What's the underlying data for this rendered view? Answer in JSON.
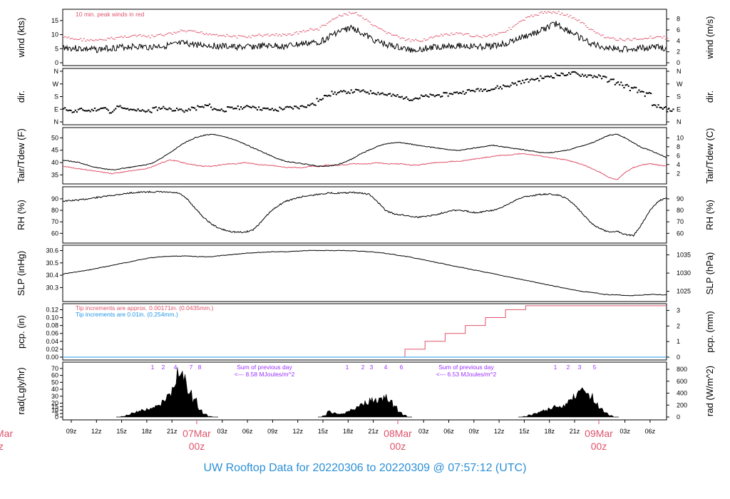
{
  "footer": {
    "title": "UW Rooftop Data for 20220306  to  20220309 @ 07:57:12  (UTC)"
  },
  "colors": {
    "red": "#df536b",
    "blue": "#2297e6",
    "purple": "#9b30ff",
    "black": "#000000",
    "footer": "#2b8fd6"
  },
  "chart_data": [
    {
      "type": "line",
      "id": "wind",
      "ylabel": "wind (kts)",
      "ylabel_right": "wind (m/s)",
      "ylim": [
        0,
        18
      ],
      "ylim_right": [
        0,
        9.26
      ],
      "yticks": [
        "0",
        "5",
        "10",
        "15"
      ],
      "yticks_right": [
        "0",
        "2",
        "4",
        "6",
        "8"
      ],
      "annotation": "10 min. peak winds in red",
      "series": [
        {
          "values": [
            5.5,
            5.2,
            5,
            4.8,
            4.6,
            5,
            5.3,
            5.5,
            5.8,
            5.7,
            5.5,
            5.8,
            6,
            6.3,
            6.8,
            6.6,
            6.4,
            6.2,
            6,
            5.8,
            5.6,
            5.5,
            5.6,
            5.8,
            5.9,
            6,
            5.8,
            6.2,
            6.6,
            7,
            7.2,
            8.5,
            10.5,
            11.5,
            12.5,
            11,
            9,
            7.5,
            6.5,
            5.8,
            5,
            4.6,
            4.8,
            5.2,
            5.6,
            6,
            6.2,
            6,
            5.8,
            5.6,
            5.8,
            6.2,
            6.8,
            7.8,
            9,
            10,
            11,
            12.5,
            14,
            12,
            10.5,
            8.5,
            7,
            6,
            5.4,
            5,
            4.8,
            5,
            5.2,
            5.4,
            5.6,
            5.2
          ]
        },
        {
          "values": [
            9,
            8.5,
            8.3,
            8,
            7.8,
            8.3,
            8.8,
            9.2,
            9.6,
            9.5,
            9.2,
            9.6,
            10,
            10.5,
            11.3,
            11,
            10.7,
            10.3,
            10,
            9.7,
            9.3,
            9.2,
            9.3,
            9.7,
            9.8,
            10,
            9.7,
            10.3,
            11,
            11.7,
            12,
            14,
            16,
            17,
            18,
            16.5,
            14,
            12,
            10.8,
            9.7,
            8.3,
            7.7,
            8,
            8.7,
            9.3,
            10,
            10.3,
            10,
            9.7,
            9.3,
            9.7,
            10.3,
            11.3,
            13,
            15,
            16.5,
            17.5,
            18,
            18,
            17,
            16,
            14,
            11.7,
            10,
            9,
            8.3,
            8,
            8.3,
            8.7,
            9,
            9.3,
            8.7
          ]
        }
      ]
    },
    {
      "type": "scatter",
      "id": "direction",
      "ylabel": "dir.",
      "ylabel_right": "dir.",
      "ylim": [
        0,
        360
      ],
      "yticks": [
        "N",
        "E",
        "S",
        "W",
        "N"
      ],
      "yticks_right": [
        "N",
        "E",
        "S",
        "W",
        "N"
      ],
      "values": [
        95,
        80,
        90,
        85,
        95,
        100,
        80,
        110,
        95,
        85,
        90,
        80,
        100,
        105,
        95,
        90,
        85,
        100,
        110,
        120,
        95,
        90,
        100,
        105,
        110,
        115,
        100,
        95,
        90,
        100,
        105,
        110,
        120,
        130,
        160,
        200,
        210,
        215,
        220,
        225,
        220,
        215,
        210,
        200,
        190,
        180,
        170,
        175,
        185,
        190,
        195,
        200,
        210,
        215,
        225,
        230,
        235,
        240,
        250,
        260,
        275,
        290,
        300,
        310,
        320,
        330,
        340,
        345,
        350,
        340,
        335,
        330,
        320,
        300,
        280,
        260,
        240,
        220,
        200,
        120,
        100,
        90
      ]
    },
    {
      "type": "line",
      "id": "temperature",
      "ylabel": "Tair/Tdew (F)",
      "ylabel_right": "Tair/Tdew (C)",
      "ylim": [
        32.5,
        53
      ],
      "ylim_right": [
        0.28,
        11.67
      ],
      "yticks": [
        "35",
        "40",
        "45",
        "50"
      ],
      "yticks_right": [
        "2",
        "4",
        "6",
        "8",
        "10"
      ],
      "series": [
        {
          "values": [
            41,
            40.5,
            40,
            39,
            38,
            37.5,
            37,
            37.5,
            38,
            38.5,
            39,
            40,
            42,
            44,
            46.5,
            48.5,
            50,
            51,
            51.5,
            51,
            50,
            49,
            47.5,
            46,
            44.5,
            43,
            41.5,
            40.5,
            40,
            39.5,
            39,
            38.5,
            38.5,
            39,
            40,
            41.5,
            43.5,
            45,
            46.5,
            47.5,
            48,
            48,
            47.5,
            47,
            46.5,
            46,
            45.5,
            45,
            45,
            45.5,
            46,
            46.5,
            47,
            46.5,
            46,
            45.5,
            45,
            44.5,
            44,
            44,
            44.5,
            45,
            46,
            47,
            48,
            49.5,
            51,
            51.5,
            50,
            48,
            46,
            45,
            43.5,
            42
          ]
        },
        {
          "values": [
            38.5,
            38,
            37.5,
            37,
            36.5,
            36,
            35.5,
            36,
            36.5,
            37,
            37.5,
            38.5,
            40,
            41,
            40.5,
            39.5,
            39,
            38.5,
            38.5,
            39,
            39.5,
            39.5,
            40,
            39.5,
            39,
            39,
            38.5,
            38,
            38,
            38,
            38.5,
            38.5,
            39,
            39,
            39,
            39.5,
            39.5,
            39.5,
            40,
            39.5,
            39.5,
            39.5,
            39,
            39,
            39.5,
            40,
            40,
            40.5,
            40.5,
            41,
            41.5,
            42,
            42.5,
            43,
            43,
            43.5,
            43.5,
            43,
            42.5,
            42,
            41.5,
            41,
            40,
            39,
            37.5,
            36,
            34,
            33,
            36,
            38,
            39,
            39.5,
            39,
            38.5
          ]
        }
      ]
    },
    {
      "type": "line",
      "id": "humidity",
      "ylabel": "RH (%)",
      "ylabel_right": "RH (%)",
      "ylim": [
        54,
        98
      ],
      "ylim_right": [
        54,
        98
      ],
      "yticks": [
        "60",
        "70",
        "80",
        "90"
      ],
      "yticks_right": [
        "60",
        "70",
        "80",
        "90"
      ],
      "series": [
        {
          "values": [
            88,
            88.5,
            89,
            90,
            91,
            92,
            93,
            94,
            95,
            95.5,
            96,
            96,
            96,
            95.5,
            95,
            90,
            82,
            74,
            68,
            64,
            62,
            61,
            61,
            63,
            70,
            78,
            84,
            88,
            90,
            92,
            93,
            94,
            95,
            95,
            95,
            95.5,
            95,
            94,
            88,
            80,
            77,
            76,
            75,
            74,
            75,
            76,
            78,
            80,
            80,
            79,
            78,
            79,
            80,
            82,
            86,
            90,
            92,
            93,
            94,
            94,
            93,
            90,
            84,
            76,
            68,
            64,
            61,
            62,
            59,
            58,
            68,
            80,
            88,
            91
          ]
        }
      ]
    },
    {
      "type": "line",
      "id": "pressure",
      "ylabel": "SLP (inHg)",
      "ylabel_right": "SLP (hPa)",
      "ylim": [
        30.21,
        30.62
      ],
      "ylim_right": [
        1022.97,
        1036.87
      ],
      "yticks": [
        "30.3",
        "30.4",
        "30.5",
        "30.6"
      ],
      "yticks_right": [
        "1025",
        "1030",
        "1035"
      ],
      "series": [
        {
          "values": [
            30.41,
            30.425,
            30.44,
            30.46,
            30.48,
            30.5,
            30.52,
            30.54,
            30.55,
            30.555,
            30.555,
            30.55,
            30.55,
            30.56,
            30.57,
            30.58,
            30.585,
            30.59,
            30.59,
            30.595,
            30.6,
            30.6,
            30.6,
            30.6,
            30.595,
            30.59,
            30.58,
            30.565,
            30.55,
            30.53,
            30.51,
            30.49,
            30.47,
            30.45,
            30.43,
            30.41,
            30.39,
            30.37,
            30.35,
            30.33,
            30.31,
            30.29,
            30.27,
            30.26,
            30.245,
            30.24,
            30.235,
            30.24,
            30.245,
            30.24
          ]
        }
      ]
    },
    {
      "type": "line",
      "id": "precipitation",
      "ylabel": "pcp. (in)",
      "ylabel_right": "pcp. (mm)",
      "ylim": [
        0,
        0.128
      ],
      "ylim_right": [
        0,
        3.25
      ],
      "yticks": [
        "0.00",
        "0.02",
        "0.04",
        "0.06",
        "0.08",
        "0.10",
        "0.12"
      ],
      "yticks_right": [
        "0",
        "1",
        "2",
        "3"
      ],
      "annotations": [
        "Tip increments are approx. 0.00171in. (0.0435mm.)",
        "Tip increments are 0.01in. (0.254mm.)"
      ],
      "series": [
        {
          "x": [
            0,
            36,
            48,
            51,
            54,
            57,
            60,
            63,
            66,
            69,
            72,
            90
          ],
          "values": [
            0,
            0,
            0,
            0.02,
            0.04,
            0.06,
            0.08,
            0.1,
            0.12,
            0.13,
            0.13,
            0.13
          ]
        },
        {
          "x": [
            0,
            90
          ],
          "values": [
            0,
            0
          ]
        }
      ]
    },
    {
      "type": "area",
      "id": "radiation",
      "ylabel": "rad(Lgly/hr)",
      "ylabel_right": "rad (W/m^2)",
      "ylim": [
        0,
        75
      ],
      "ylim_right": [
        0,
        872
      ],
      "yticks": [
        "0",
        "5",
        "10",
        "15",
        "20",
        "30",
        "40",
        "50",
        "60",
        "70"
      ],
      "yticks_right": [
        "0",
        "200",
        "400",
        "600",
        "800"
      ],
      "hour_markers": [
        {
          "labels": [
            "1",
            "2",
            "4",
            "7",
            "8"
          ],
          "note": "Sum of previous day",
          "sum": "<--- 8.58 MJoules/m^2"
        },
        {
          "labels": [
            "1",
            "2",
            "3",
            "4",
            "6"
          ],
          "note": "Sum of previous day",
          "sum": "<--- 6.53 MJoules/m^2"
        },
        {
          "labels": [
            "1",
            "2",
            "3",
            "5"
          ]
        }
      ],
      "days": [
        {
          "values": [
            0,
            1,
            3,
            6,
            8,
            10,
            12,
            15,
            18,
            22,
            30,
            45,
            68,
            60,
            40,
            25,
            12,
            5,
            1,
            0
          ]
        },
        {
          "values": [
            0,
            2,
            8,
            6,
            4,
            5,
            8,
            12,
            14,
            18,
            22,
            25,
            24,
            28,
            30,
            22,
            15,
            8,
            3,
            0
          ]
        },
        {
          "values": [
            0,
            1,
            3,
            5,
            8,
            10,
            12,
            15,
            14,
            18,
            25,
            32,
            45,
            38,
            30,
            22,
            12,
            6,
            2,
            0
          ]
        }
      ]
    }
  ],
  "xaxis": {
    "ticks": [
      "09z",
      "12z",
      "15z",
      "18z",
      "21z",
      "03z",
      "06z",
      "09z",
      "12z",
      "15z",
      "18z",
      "21z",
      "03z",
      "06z",
      "09z",
      "12z",
      "15z",
      "18z",
      "21z",
      "03z",
      "06z"
    ],
    "days": [
      {
        "date": "07Mar",
        "hour": "00z"
      },
      {
        "date": "08Mar",
        "hour": "00z"
      },
      {
        "date": "09Mar",
        "hour": "00z"
      }
    ],
    "cut": {
      "date": "Mar",
      "hour": "z"
    }
  }
}
